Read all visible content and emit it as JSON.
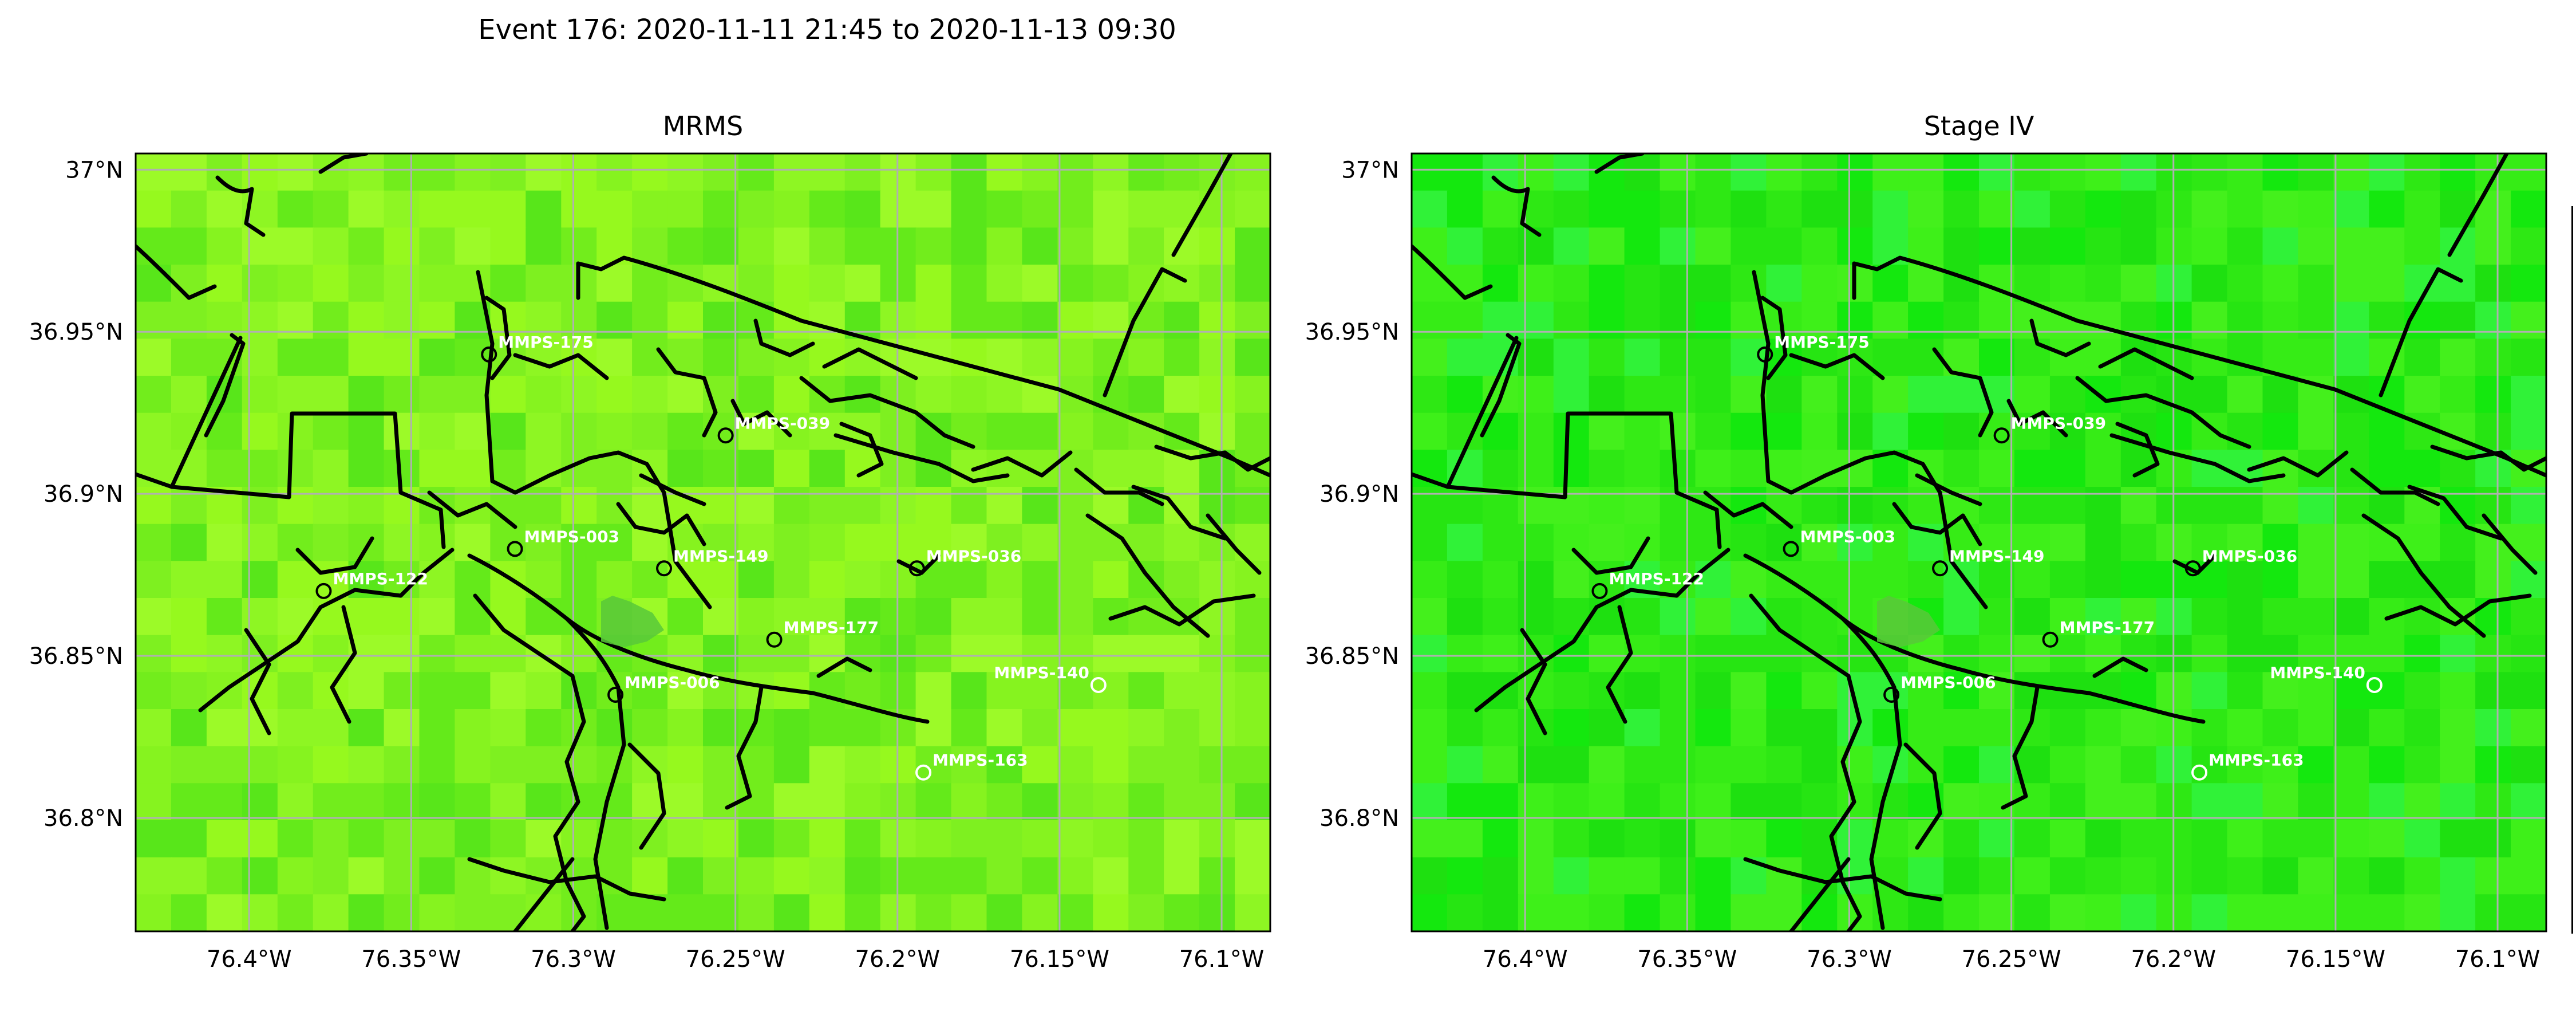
{
  "figure": {
    "title": "Event 176: 2020-11-11 21:45 to 2020-11-13 09:30"
  },
  "panels": [
    {
      "id": "mrms",
      "title": "MRMS",
      "palette": [
        "#7ef020",
        "#86f31f",
        "#8ef623",
        "#96f91e",
        "#72ed1c",
        "#64ea1a",
        "#58e61a",
        "#9cfa28"
      ]
    },
    {
      "id": "stage4",
      "title": "Stage IV",
      "palette": [
        "#2ee814",
        "#36ec16",
        "#3ef019",
        "#26e512",
        "#1ee010",
        "#44f01c",
        "#14e80e",
        "#30f238"
      ]
    }
  ],
  "axes": {
    "x_ticks": [
      "76.4°W",
      "76.35°W",
      "76.3°W",
      "76.25°W",
      "76.2°W",
      "76.15°W",
      "76.1°W"
    ],
    "y_ticks": [
      "37°N",
      "36.95°N",
      "36.9°N",
      "36.85°N",
      "36.8°N"
    ],
    "x_tick_values": [
      -76.4,
      -76.35,
      -76.3,
      -76.25,
      -76.2,
      -76.15,
      -76.1
    ],
    "y_tick_values": [
      37.0,
      36.95,
      36.9,
      36.85,
      36.8
    ],
    "lon_range": [
      -76.435,
      -76.085
    ],
    "lat_range": [
      36.765,
      37.005
    ],
    "grid": true,
    "grid_color": "#b0b0b0"
  },
  "stations": [
    {
      "id": "MMPS-175",
      "lon": -76.326,
      "lat": 36.943,
      "ring": "black"
    },
    {
      "id": "MMPS-039",
      "lon": -76.253,
      "lat": 36.918,
      "ring": "black"
    },
    {
      "id": "MMPS-003",
      "lon": -76.318,
      "lat": 36.883,
      "ring": "black"
    },
    {
      "id": "MMPS-149",
      "lon": -76.272,
      "lat": 36.877,
      "ring": "black"
    },
    {
      "id": "MMPS-036",
      "lon": -76.194,
      "lat": 36.877,
      "ring": "black"
    },
    {
      "id": "MMPS-122",
      "lon": -76.377,
      "lat": 36.87,
      "ring": "black"
    },
    {
      "id": "MMPS-177",
      "lon": -76.238,
      "lat": 36.855,
      "ring": "black"
    },
    {
      "id": "MMPS-006",
      "lon": -76.287,
      "lat": 36.838,
      "ring": "black"
    },
    {
      "id": "MMPS-140",
      "lon": -76.138,
      "lat": 36.841,
      "ring": "white",
      "label_side": "left"
    },
    {
      "id": "MMPS-163",
      "lon": -76.192,
      "lat": 36.814,
      "ring": "white"
    }
  ]
}
